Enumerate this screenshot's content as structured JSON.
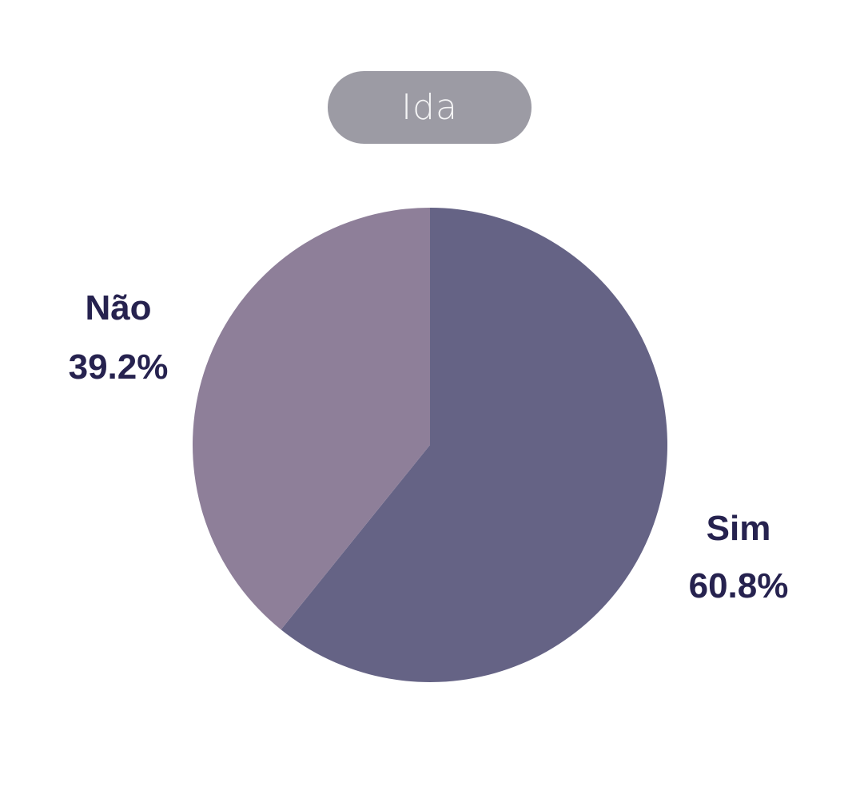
{
  "chart_data": {
    "type": "pie",
    "title": "Ida",
    "categories": [
      "Sim",
      "Não"
    ],
    "values": [
      60.8,
      39.2
    ],
    "value_labels": [
      "60.8%",
      "39.2%"
    ],
    "colors": [
      "#656385",
      "#8e7f99"
    ],
    "label_color": "#26224f",
    "title_background": "#9c9ba4",
    "start_angle": "12 o'clock",
    "direction": "clockwise",
    "legend": "none"
  }
}
